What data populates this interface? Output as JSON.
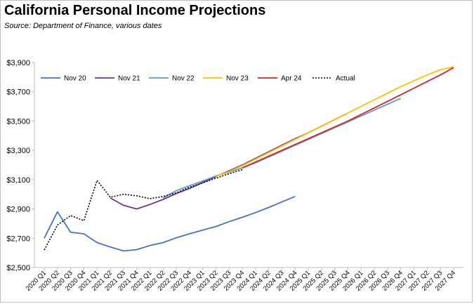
{
  "header": {
    "title": "California Personal Income Projections",
    "subtitle": "Source:  Department of Finance, various dates"
  },
  "chart_data": {
    "type": "line",
    "title": "California Personal Income Projections",
    "subtitle": "Source:  Department of Finance, various dates",
    "xlabel": "",
    "ylabel": "",
    "ylim": [
      2500,
      3900
    ],
    "yticks": [
      2500,
      2700,
      2900,
      3100,
      3300,
      3500,
      3700,
      3900
    ],
    "ytick_labels": [
      "$2,500",
      "$2,700",
      "$2,900",
      "$3,100",
      "$3,300",
      "$3,500",
      "$3,700",
      "$3,900"
    ],
    "grid": false,
    "legend": "top-left",
    "x": [
      "2020 Q1",
      "2020 Q2",
      "2020 Q3",
      "2020 Q4",
      "2021 Q1",
      "2021 Q2",
      "2021 Q3",
      "2021 Q4",
      "2022 Q1",
      "2022 Q2",
      "2022 Q3",
      "2022 Q4",
      "2023 Q1",
      "2023 Q2",
      "2023 Q3",
      "2023 Q4",
      "2024 Q1",
      "2024 Q2",
      "2024 Q3",
      "2024 Q4",
      "2025 Q1",
      "2025 Q2",
      "2025 Q3",
      "2025 Q4",
      "2026 Q1",
      "2026 Q2",
      "2026 Q3",
      "2026 Q4",
      "2027 Q1",
      "2027 Q2",
      "2027 Q3",
      "2027 Q4"
    ],
    "series": [
      {
        "name": "Nov 20",
        "color": "#4472c4",
        "dash": "solid",
        "values": [
          2700,
          2880,
          2740,
          2730,
          2670,
          2640,
          2613,
          2622,
          2650,
          2670,
          2703,
          2730,
          2755,
          2780,
          2813,
          2843,
          2875,
          2910,
          2948,
          2985,
          null,
          null,
          null,
          null,
          null,
          null,
          null,
          null,
          null,
          null,
          null,
          null
        ]
      },
      {
        "name": "Nov 21",
        "color": "#7030a0",
        "dash": "solid",
        "values": [
          null,
          null,
          null,
          null,
          null,
          2975,
          2925,
          2900,
          2930,
          2965,
          3005,
          3040,
          3080,
          3120,
          3160,
          3200,
          3245,
          3290,
          3335,
          3380,
          3420,
          3465,
          3510,
          3555,
          null,
          null,
          null,
          null,
          null,
          null,
          null,
          null
        ]
      },
      {
        "name": "Nov 22",
        "color": "#5b9bd5",
        "dash": "solid",
        "values": [
          null,
          null,
          null,
          null,
          null,
          null,
          null,
          null,
          null,
          2975,
          3025,
          3058,
          3090,
          3125,
          3150,
          3180,
          3215,
          3255,
          3295,
          3335,
          3375,
          3415,
          3455,
          3495,
          3535,
          3575,
          3615,
          3655,
          null,
          null,
          null,
          null
        ]
      },
      {
        "name": "Nov 23",
        "color": "#ffc000",
        "dash": "solid",
        "values": [
          null,
          null,
          null,
          null,
          null,
          null,
          null,
          null,
          null,
          null,
          null,
          null,
          null,
          3120,
          3155,
          3195,
          3240,
          3285,
          3330,
          3375,
          3420,
          3465,
          3510,
          3555,
          3600,
          3645,
          3690,
          3735,
          3775,
          3815,
          3850,
          3870
        ]
      },
      {
        "name": "Apr 24",
        "color": "#e0201b",
        "dash": "solid",
        "values": [
          null,
          null,
          null,
          null,
          null,
          null,
          null,
          null,
          null,
          null,
          null,
          null,
          null,
          null,
          null,
          3180,
          3220,
          3260,
          3300,
          3340,
          3380,
          3420,
          3460,
          3500,
          3545,
          3590,
          3635,
          3680,
          3725,
          3770,
          3815,
          3865
        ]
      },
      {
        "name": "Actual",
        "color": "#000000",
        "dash": "dotted",
        "values": [
          2620,
          2790,
          2855,
          2820,
          3095,
          2980,
          3000,
          2990,
          2970,
          2985,
          3010,
          3048,
          3078,
          3110,
          3140,
          3168,
          null,
          null,
          null,
          null,
          null,
          null,
          null,
          null,
          null,
          null,
          null,
          null,
          null,
          null,
          null,
          null
        ]
      }
    ]
  }
}
